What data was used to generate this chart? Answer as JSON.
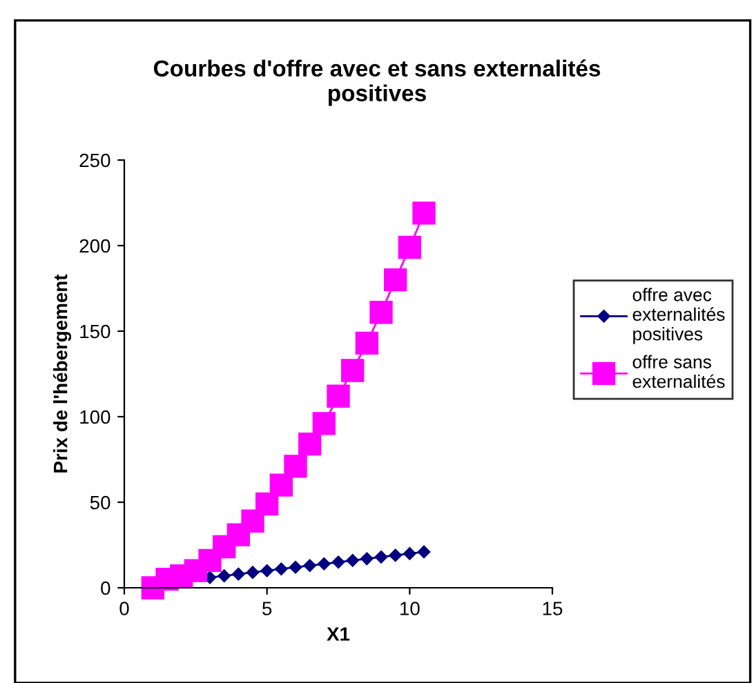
{
  "chart_data": {
    "type": "line",
    "title": "Courbes d'offre avec et sans externalités\npositives",
    "xlabel": "X1",
    "ylabel": "Prix de l'hébergement",
    "x": [
      1,
      1.5,
      2,
      2.5,
      3,
      3.5,
      4,
      4.5,
      5,
      5.5,
      6,
      6.5,
      7,
      7.5,
      8,
      8.5,
      9,
      9.5,
      10,
      10.5
    ],
    "series": [
      {
        "name": "offre avec\nexternalités\npositives",
        "color": "#000080",
        "marker": "diamond",
        "values": [
          null,
          null,
          null,
          null,
          6,
          7,
          8,
          9,
          10,
          11,
          12,
          13,
          14,
          15,
          16,
          17,
          18,
          19,
          20,
          21
        ]
      },
      {
        "name": "offre sans\nexternalités",
        "color": "#ff00ff",
        "marker": "square",
        "values": [
          0,
          5,
          7,
          10,
          16,
          24,
          31,
          39,
          49,
          60,
          71,
          84,
          96,
          112,
          127,
          143,
          161,
          180,
          199,
          219
        ]
      }
    ],
    "xlim": [
      0,
      15
    ],
    "xticks": [
      0,
      5,
      10,
      15
    ],
    "ylim": [
      0,
      250
    ],
    "yticks": [
      0,
      50,
      100,
      150,
      200,
      250
    ],
    "grid": false,
    "legend": "right"
  }
}
